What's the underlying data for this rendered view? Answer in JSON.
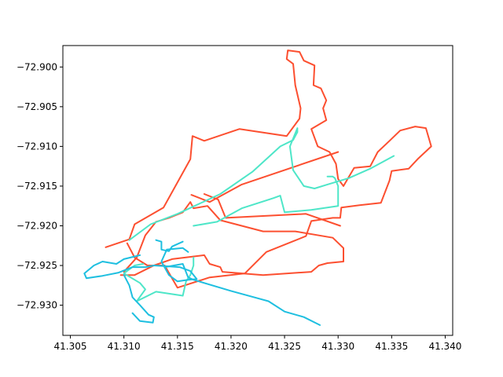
{
  "chart_data": {
    "type": "line",
    "title": "",
    "xlabel": "",
    "ylabel": "",
    "xlim": [
      41.3043,
      41.3407
    ],
    "ylim": [
      -72.9338,
      -72.8973
    ],
    "x_ticks": [
      "41.305",
      "41.310",
      "41.315",
      "41.320",
      "41.325",
      "41.330",
      "41.335",
      "41.340"
    ],
    "x_tick_values": [
      41.305,
      41.31,
      41.315,
      41.32,
      41.325,
      41.33,
      41.335,
      41.34
    ],
    "y_ticks": [
      "−72.900",
      "−72.905",
      "−72.910",
      "−72.915",
      "−72.920",
      "−72.925",
      "−72.930"
    ],
    "y_tick_values": [
      -72.9,
      -72.905,
      -72.91,
      -72.915,
      -72.92,
      -72.925,
      -72.93
    ],
    "grid": false,
    "legend": "none",
    "series": [
      {
        "color": "#fc4f30",
        "x": [
          41.3083,
          41.3105,
          41.311,
          41.3137,
          41.3162,
          41.3164,
          41.3175,
          41.3208,
          41.3252,
          41.3264,
          41.3265,
          41.326,
          41.3258,
          41.3252,
          41.3253,
          41.3264,
          41.3268,
          41.3278,
          41.3277,
          41.3284,
          41.3289,
          41.3286,
          41.3289,
          41.3275,
          41.3281,
          41.3292,
          41.3298,
          41.33,
          41.3305,
          41.3315,
          41.333,
          41.3337,
          41.3348,
          41.3358,
          41.3372,
          41.3382,
          41.3387,
          41.3375,
          41.3366,
          41.335,
          41.3348,
          41.334,
          41.332,
          41.3303,
          41.3302,
          41.3295,
          41.3275,
          41.327,
          41.3233,
          41.3213,
          41.318,
          41.315,
          41.3138,
          41.3122,
          41.311,
          41.3103
        ],
        "y": [
          -72.9227,
          -72.9217,
          -72.9198,
          -72.9177,
          -72.9116,
          -72.9087,
          -72.9093,
          -72.9078,
          -72.9087,
          -72.9065,
          -72.9052,
          -72.9023,
          -72.8996,
          -72.899,
          -72.8979,
          -72.8981,
          -72.8992,
          -72.8998,
          -72.9023,
          -72.9027,
          -72.9042,
          -72.9052,
          -72.9067,
          -72.9078,
          -72.91,
          -72.9107,
          -72.9122,
          -72.9141,
          -72.915,
          -72.9127,
          -72.9125,
          -72.9107,
          -72.9093,
          -72.908,
          -72.9075,
          -72.9077,
          -72.91,
          -72.9115,
          -72.9128,
          -72.9131,
          -72.9143,
          -72.9171,
          -72.9174,
          -72.9177,
          -72.919,
          -72.919,
          -72.9194,
          -72.9213,
          -72.9233,
          -72.926,
          -72.9265,
          -72.9278,
          -72.925,
          -72.925,
          -72.924,
          -72.9222
        ]
      },
      {
        "color": "#fc4f30",
        "x": [
          41.3097,
          41.311,
          41.3128,
          41.3145,
          41.3175,
          41.318,
          41.319,
          41.3192,
          41.323,
          41.3275,
          41.3282,
          41.329,
          41.3305,
          41.3305,
          41.3295,
          41.326,
          41.323,
          41.319,
          41.3178,
          41.3165,
          41.3162,
          41.3155,
          41.3142,
          41.313,
          41.312,
          41.3112,
          41.31
        ],
        "y": [
          -72.9262,
          -72.9262,
          -72.925,
          -72.9242,
          -72.9237,
          -72.9248,
          -72.9252,
          -72.9258,
          -72.9262,
          -72.9258,
          -72.925,
          -72.9247,
          -72.9245,
          -72.9228,
          -72.9215,
          -72.9207,
          -72.9207,
          -72.9193,
          -72.9175,
          -72.9178,
          -72.917,
          -72.9183,
          -72.919,
          -72.9195,
          -72.9212,
          -72.924,
          -72.9258
        ]
      },
      {
        "color": "#fc4f30",
        "x": [
          41.3175,
          41.3188,
          41.3195,
          41.327,
          41.3302
        ],
        "y": [
          -72.916,
          -72.9167,
          -72.919,
          -72.9185,
          -72.92
        ]
      },
      {
        "color": "#fc4f30",
        "x": [
          41.3163,
          41.318,
          41.321,
          41.33
        ],
        "y": [
          -72.9161,
          -72.917,
          -72.9148,
          -72.9107
        ]
      },
      {
        "color": "#4ee6c8",
        "x": [
          41.3105,
          41.3125,
          41.315,
          41.319,
          41.322,
          41.3246,
          41.3258,
          41.3262,
          41.3262,
          41.3255,
          41.3258,
          41.3268,
          41.3278,
          41.329,
          41.331,
          41.333,
          41.3352
        ],
        "y": [
          -72.9218,
          -72.9198,
          -72.9185,
          -72.916,
          -72.9132,
          -72.91,
          -72.9092,
          -72.9082,
          -72.9077,
          -72.91,
          -72.913,
          -72.915,
          -72.9153,
          -72.9148,
          -72.914,
          -72.9128,
          -72.9112
        ]
      },
      {
        "color": "#4ee6c8",
        "x": [
          41.3165,
          41.3187,
          41.321,
          41.324,
          41.3246,
          41.325,
          41.3275,
          41.33,
          41.33,
          41.3297,
          41.3295,
          41.329
        ],
        "y": [
          -72.92,
          -72.9195,
          -72.9178,
          -72.9165,
          -72.9162,
          -72.9183,
          -72.918,
          -72.9175,
          -72.915,
          -72.914,
          -72.9138,
          -72.9138
        ]
      },
      {
        "color": "#4ee6c8",
        "x": [
          41.3118,
          41.311,
          41.31,
          41.3115,
          41.312,
          41.3112,
          41.313,
          41.3155,
          41.3158,
          41.3162,
          41.3165,
          41.3165
        ],
        "y": [
          -72.9248,
          -72.925,
          -72.926,
          -72.9272,
          -72.928,
          -72.9295,
          -72.9283,
          -72.9288,
          -72.927,
          -72.9262,
          -72.925,
          -72.924
        ]
      },
      {
        "color": "#1ebfe0",
        "x": [
          41.3115,
          41.31,
          41.3093,
          41.308,
          41.3072,
          41.3063,
          41.3065,
          41.308,
          41.3095,
          41.3108,
          41.312,
          41.3128,
          41.314,
          41.3152,
          41.3162,
          41.3168,
          41.316,
          41.315,
          41.3142,
          41.3135,
          41.314,
          41.3155,
          41.316
        ],
        "y": [
          -72.9237,
          -72.9242,
          -72.9248,
          -72.9245,
          -72.925,
          -72.926,
          -72.9266,
          -72.9263,
          -72.9259,
          -72.9252,
          -72.9252,
          -72.925,
          -72.9251,
          -72.9252,
          -72.9257,
          -72.9267,
          -72.9268,
          -72.927,
          -72.9262,
          -72.9245,
          -72.923,
          -72.9228,
          -72.9233
        ]
      },
      {
        "color": "#1ebfe0",
        "x": [
          41.3138,
          41.3155,
          41.316,
          41.3165,
          41.32,
          41.3235,
          41.325,
          41.3268,
          41.3283
        ],
        "y": [
          -72.9252,
          -72.9248,
          -72.9265,
          -72.9268,
          -72.9282,
          -72.9295,
          -72.9308,
          -72.9315,
          -72.9325
        ]
      },
      {
        "color": "#1ebfe0",
        "x": [
          41.31,
          41.3105,
          41.3108,
          41.3115,
          41.3123,
          41.3128,
          41.3127,
          41.3115,
          41.3108
        ],
        "y": [
          -72.9262,
          -72.9275,
          -72.929,
          -72.93,
          -72.9312,
          -72.9315,
          -72.9322,
          -72.932,
          -72.931
        ]
      },
      {
        "color": "#1ebfe0",
        "x": [
          41.313,
          41.3135,
          41.3135,
          41.3142,
          41.3145,
          41.3155
        ],
        "y": [
          -72.9218,
          -72.922,
          -72.923,
          -72.9232,
          -72.9226,
          -72.922
        ]
      }
    ]
  }
}
